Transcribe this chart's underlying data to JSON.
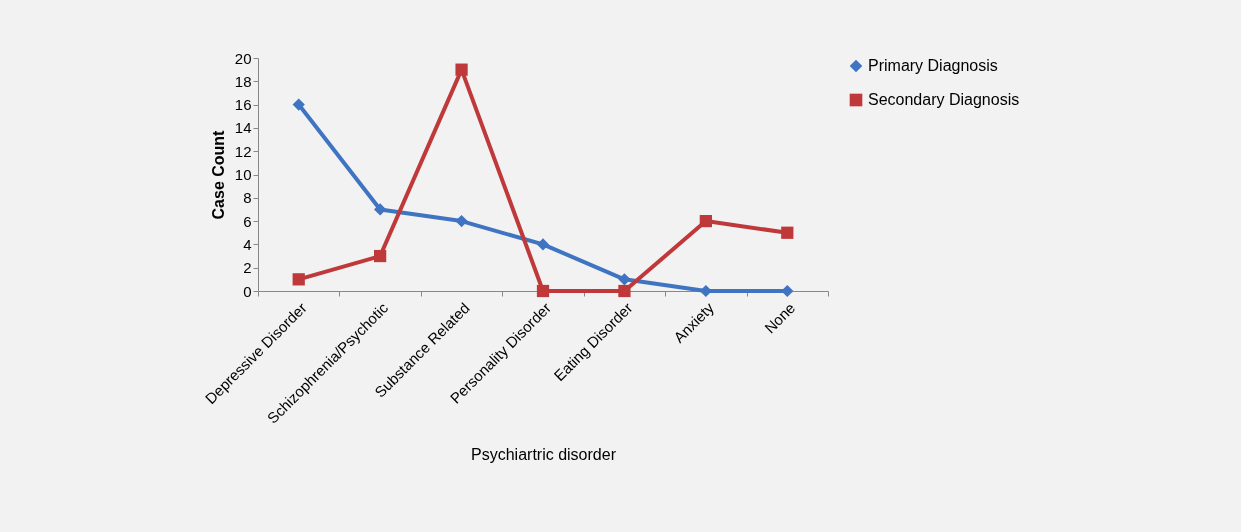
{
  "chart_data": {
    "type": "line",
    "xlabel": "Psychiartric disorder",
    "ylabel": "Case Count",
    "categories": [
      "Depressive Disorder",
      "Schizophrenia/Psychotic",
      "Substance Related",
      "Personality Disorder",
      "Eating Disorder",
      "Anxiety",
      "None"
    ],
    "series": [
      {
        "name": "Primary Diagnosis",
        "color": "#3f74c2",
        "marker": "diamond",
        "values": [
          16,
          7,
          6,
          4,
          1,
          0,
          0
        ]
      },
      {
        "name": "Secondary Diagnosis",
        "color": "#c0393a",
        "marker": "square",
        "values": [
          1,
          3,
          19,
          0,
          0,
          6,
          5
        ]
      }
    ],
    "ylim": [
      0,
      20
    ],
    "yticks": [
      0,
      2,
      4,
      6,
      8,
      10,
      12,
      14,
      16,
      18,
      20
    ],
    "grid": false,
    "legend": "right",
    "line_style": "solid"
  }
}
